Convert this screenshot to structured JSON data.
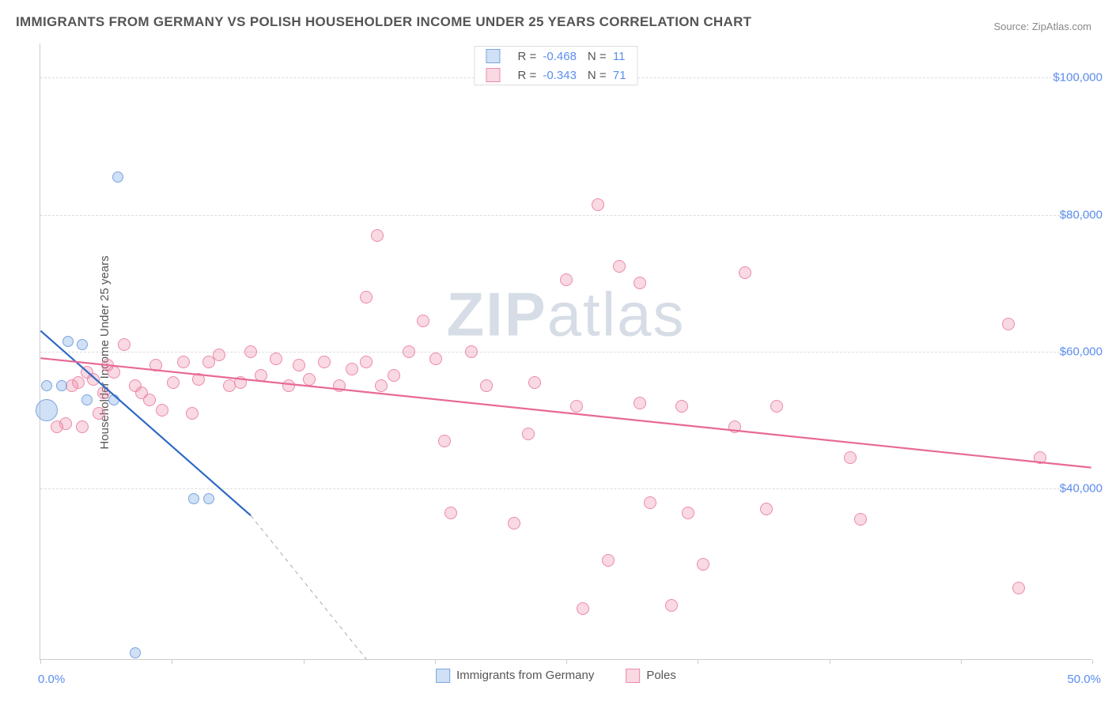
{
  "title": "IMMIGRANTS FROM GERMANY VS POLISH HOUSEHOLDER INCOME UNDER 25 YEARS CORRELATION CHART",
  "source": "Source: ZipAtlas.com",
  "watermark_bold": "ZIP",
  "watermark_rest": "atlas",
  "ylabel": "Householder Income Under 25 years",
  "chart": {
    "type": "scatter",
    "xlim": [
      0,
      50
    ],
    "ylim": [
      15000,
      105000
    ],
    "y_gridlines": [
      40000,
      60000,
      80000,
      100000
    ],
    "y_ticks": [
      {
        "v": 40000,
        "label": "$40,000"
      },
      {
        "v": 60000,
        "label": "$60,000"
      },
      {
        "v": 80000,
        "label": "$80,000"
      },
      {
        "v": 100000,
        "label": "$100,000"
      }
    ],
    "x_ticks_minor": [
      0,
      6.25,
      12.5,
      18.75,
      25,
      31.25,
      37.5,
      43.75,
      50
    ],
    "x_left_label": "0.0%",
    "x_right_label": "50.0%",
    "background_color": "#ffffff",
    "grid_color": "#dddddd",
    "series": [
      {
        "name": "Immigrants from Germany",
        "color_fill": "rgba(120,165,225,0.35)",
        "color_stroke": "#7aa5e1",
        "marker_radius": 7,
        "R": "-0.468",
        "N": "11",
        "trend": {
          "solid": {
            "x1": 0,
            "y1": 63000,
            "x2": 10,
            "y2": 36000,
            "stroke": "#2d69c4",
            "width": 2.2
          },
          "dashed": {
            "x1": 10,
            "y1": 36000,
            "x2": 15.5,
            "y2": 15000,
            "stroke": "#aaaaaa",
            "width": 1,
            "dash": "5,5"
          }
        },
        "points": [
          {
            "x": 3.7,
            "y": 85500,
            "r": 7
          },
          {
            "x": 1.3,
            "y": 61500,
            "r": 7
          },
          {
            "x": 2.0,
            "y": 61000,
            "r": 7
          },
          {
            "x": 1.0,
            "y": 55000,
            "r": 7
          },
          {
            "x": 0.3,
            "y": 55000,
            "r": 7
          },
          {
            "x": 0.3,
            "y": 51500,
            "r": 14
          },
          {
            "x": 2.2,
            "y": 53000,
            "r": 7
          },
          {
            "x": 3.5,
            "y": 53000,
            "r": 7
          },
          {
            "x": 7.3,
            "y": 38500,
            "r": 7
          },
          {
            "x": 8.0,
            "y": 38500,
            "r": 7
          },
          {
            "x": 4.5,
            "y": 16000,
            "r": 7
          }
        ]
      },
      {
        "name": "Poles",
        "color_fill": "rgba(235,130,160,0.30)",
        "color_stroke": "#eb8aac",
        "marker_radius": 8,
        "R": "-0.343",
        "N": "71",
        "trend": {
          "solid": {
            "x1": 0,
            "y1": 59000,
            "x2": 50,
            "y2": 43000,
            "stroke": "#e86a94",
            "width": 2.2
          }
        },
        "points": [
          {
            "x": 0.8,
            "y": 49000
          },
          {
            "x": 1.2,
            "y": 49500
          },
          {
            "x": 1.5,
            "y": 55000
          },
          {
            "x": 1.8,
            "y": 55500
          },
          {
            "x": 2.0,
            "y": 49000
          },
          {
            "x": 2.2,
            "y": 57000
          },
          {
            "x": 2.5,
            "y": 56000
          },
          {
            "x": 2.8,
            "y": 51000
          },
          {
            "x": 3.0,
            "y": 54000
          },
          {
            "x": 3.2,
            "y": 58000
          },
          {
            "x": 3.5,
            "y": 57000
          },
          {
            "x": 4.0,
            "y": 61000
          },
          {
            "x": 4.5,
            "y": 55000
          },
          {
            "x": 4.8,
            "y": 54000
          },
          {
            "x": 5.2,
            "y": 53000
          },
          {
            "x": 5.5,
            "y": 58000
          },
          {
            "x": 5.8,
            "y": 51500
          },
          {
            "x": 6.3,
            "y": 55500
          },
          {
            "x": 6.8,
            "y": 58500
          },
          {
            "x": 7.2,
            "y": 51000
          },
          {
            "x": 7.5,
            "y": 56000
          },
          {
            "x": 8.0,
            "y": 58500
          },
          {
            "x": 8.5,
            "y": 59500
          },
          {
            "x": 9.0,
            "y": 55000
          },
          {
            "x": 9.5,
            "y": 55500
          },
          {
            "x": 10.0,
            "y": 60000
          },
          {
            "x": 10.5,
            "y": 56500
          },
          {
            "x": 11.2,
            "y": 59000
          },
          {
            "x": 11.8,
            "y": 55000
          },
          {
            "x": 12.3,
            "y": 58000
          },
          {
            "x": 12.8,
            "y": 56000
          },
          {
            "x": 13.5,
            "y": 58500
          },
          {
            "x": 14.2,
            "y": 55000
          },
          {
            "x": 14.8,
            "y": 57500
          },
          {
            "x": 15.5,
            "y": 58500
          },
          {
            "x": 15.5,
            "y": 68000
          },
          {
            "x": 16.0,
            "y": 77000
          },
          {
            "x": 16.2,
            "y": 55000
          },
          {
            "x": 16.8,
            "y": 56500
          },
          {
            "x": 17.5,
            "y": 60000
          },
          {
            "x": 18.2,
            "y": 64500
          },
          {
            "x": 18.8,
            "y": 59000
          },
          {
            "x": 19.2,
            "y": 47000
          },
          {
            "x": 19.5,
            "y": 36500
          },
          {
            "x": 20.5,
            "y": 60000
          },
          {
            "x": 21.2,
            "y": 55000
          },
          {
            "x": 22.5,
            "y": 35000
          },
          {
            "x": 23.2,
            "y": 48000
          },
          {
            "x": 23.5,
            "y": 55500
          },
          {
            "x": 25.0,
            "y": 70500
          },
          {
            "x": 25.5,
            "y": 52000
          },
          {
            "x": 25.8,
            "y": 22500
          },
          {
            "x": 26.5,
            "y": 81500
          },
          {
            "x": 27.0,
            "y": 29500
          },
          {
            "x": 27.5,
            "y": 72500
          },
          {
            "x": 28.5,
            "y": 52500
          },
          {
            "x": 28.5,
            "y": 70000
          },
          {
            "x": 29.0,
            "y": 38000
          },
          {
            "x": 30.0,
            "y": 23000
          },
          {
            "x": 30.5,
            "y": 52000
          },
          {
            "x": 30.8,
            "y": 36500
          },
          {
            "x": 31.5,
            "y": 29000
          },
          {
            "x": 33.0,
            "y": 49000
          },
          {
            "x": 33.5,
            "y": 71500
          },
          {
            "x": 34.5,
            "y": 37000
          },
          {
            "x": 35.0,
            "y": 52000
          },
          {
            "x": 38.5,
            "y": 44500
          },
          {
            "x": 39.0,
            "y": 35500
          },
          {
            "x": 46.0,
            "y": 64000
          },
          {
            "x": 46.5,
            "y": 25500
          },
          {
            "x": 47.5,
            "y": 44500
          }
        ]
      }
    ]
  },
  "x_legend": {
    "series1_label": "Immigrants from Germany",
    "series2_label": "Poles"
  }
}
